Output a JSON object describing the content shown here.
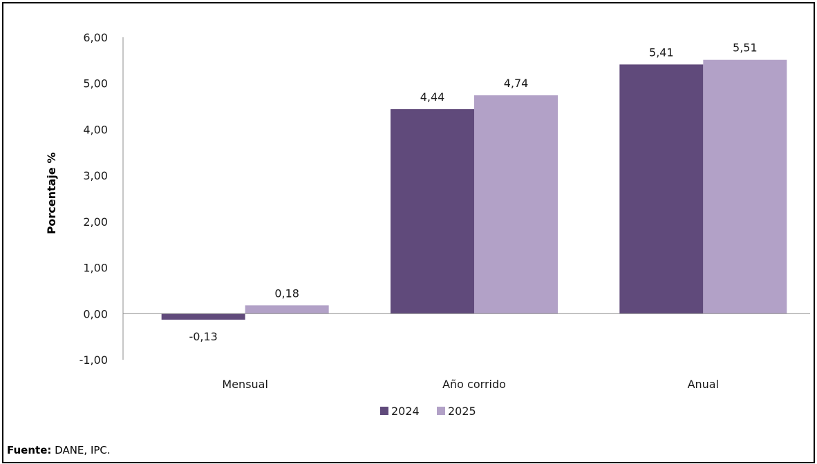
{
  "chart_data": {
    "type": "bar",
    "ylabel": "Porcentaje %",
    "ylim": [
      -1,
      6
    ],
    "yticks": [
      "-1,00",
      "0,00",
      "1,00",
      "2,00",
      "3,00",
      "4,00",
      "5,00",
      "6,00"
    ],
    "categories": [
      "Mensual",
      "Año corrido",
      "Anual"
    ],
    "series": [
      {
        "name": "2024",
        "color": "#604a7b",
        "values": [
          -0.13,
          4.44,
          5.41
        ],
        "labels": [
          "-0,13",
          "4,44",
          "5,41"
        ]
      },
      {
        "name": "2025",
        "color": "#b2a1c7",
        "values": [
          0.18,
          4.74,
          5.51
        ],
        "labels": [
          "0,18",
          "4,74",
          "5,51"
        ]
      }
    ],
    "legend_position": "bottom",
    "grid": false
  },
  "source": {
    "label": "Fuente:",
    "text": "DANE, IPC."
  }
}
